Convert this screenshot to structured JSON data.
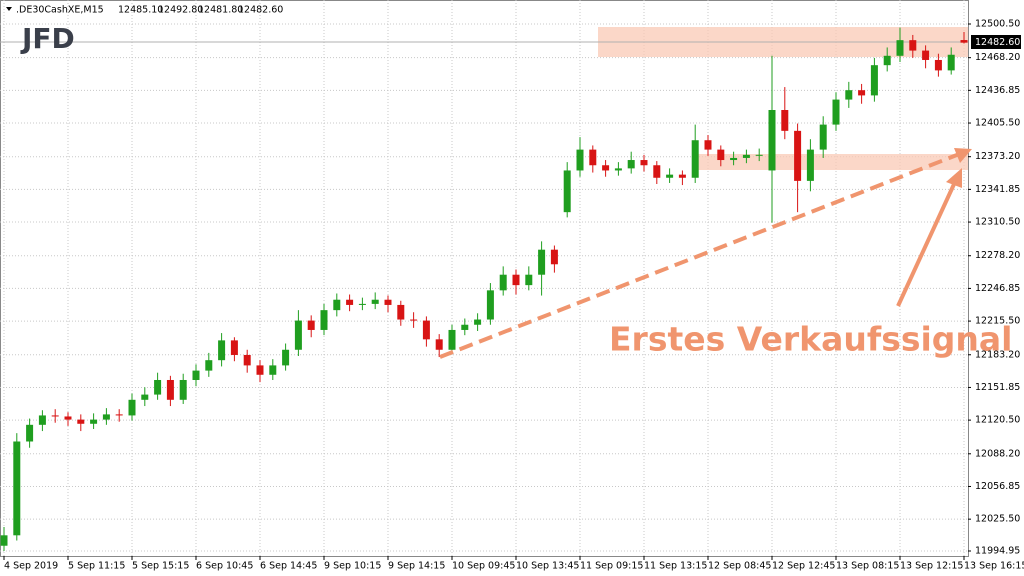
{
  "header": {
    "symbol": ".DE30CashXE,M15",
    "ohlc": [
      "12485.10",
      "12492.80",
      "12481.80",
      "12482.60"
    ]
  },
  "logo": "JFD",
  "current_price_label": "12482.60",
  "annotation": "Erstes Verkaufssignal",
  "chart_data": {
    "type": "candlestick",
    "up_color": "#1f9e1f",
    "down_color": "#d81414",
    "grid": true,
    "categories": [
      "4 Sep 2019",
      null,
      null,
      null,
      null,
      "5 Sep 11:15",
      null,
      null,
      null,
      null,
      "5 Sep 15:15",
      null,
      null,
      null,
      null,
      "6 Sep 10:45",
      null,
      null,
      null,
      null,
      "6 Sep 14:45",
      null,
      null,
      null,
      null,
      "9 Sep 10:15",
      null,
      null,
      null,
      null,
      "9 Sep 14:15",
      null,
      null,
      null,
      null,
      "10 Sep 09:45",
      null,
      null,
      null,
      null,
      "10 Sep 13:45",
      null,
      null,
      null,
      null,
      "11 Sep 09:15",
      null,
      null,
      null,
      null,
      "11 Sep 13:15",
      null,
      null,
      null,
      null,
      "12 Sep 08:45",
      null,
      null,
      null,
      null,
      "12 Sep 12:45",
      null,
      null,
      null,
      null,
      "13 Sep 08:15",
      null,
      null,
      null,
      null,
      "13 Sep 12:15",
      null,
      null,
      null,
      null,
      "13 Sep 16:15"
    ],
    "open": [
      12000,
      12010,
      12100,
      12116,
      12125,
      12124,
      12121,
      12117,
      12121,
      12126,
      12125,
      12140,
      12145,
      12159,
      12140,
      12159,
      12168,
      12178,
      12197,
      12183,
      12173,
      12164,
      12173,
      12188,
      12216,
      12207,
      12226,
      12236,
      12231,
      12232,
      12236,
      12231,
      12217,
      12216,
      12198,
      12188,
      12207,
      12212,
      12217,
      12245,
      12260,
      12250,
      12260,
      12284,
      12320,
      12360,
      12380,
      12365,
      12360,
      12362,
      12370,
      12365,
      12353,
      12356,
      12353,
      12389,
      12380,
      12370,
      12372,
      12375,
      12360,
      12418,
      12398,
      12350,
      12380,
      12404,
      12428,
      12437,
      12432,
      12461,
      12470,
      12485,
      12475,
      12466,
      12456,
      12485.1
    ],
    "high": [
      12018,
      12108,
      12122,
      12130,
      12131,
      12128,
      12126,
      12127,
      12132,
      12131,
      12146,
      12152,
      12166,
      12163,
      12165,
      12174,
      12185,
      12204,
      12200,
      12188,
      12178,
      12179,
      12194,
      12226,
      12221,
      12232,
      12242,
      12241,
      12238,
      12243,
      12240,
      12235,
      12224,
      12220,
      12203,
      12212,
      12218,
      12223,
      12252,
      12268,
      12265,
      12268,
      12292,
      12288,
      12368,
      12392,
      12384,
      12370,
      12368,
      12378,
      12375,
      12369,
      12362,
      12360,
      12404,
      12394,
      12384,
      12378,
      12380,
      12381,
      12470,
      12440,
      12405,
      12390,
      12412,
      12435,
      12445,
      12443,
      12468,
      12478,
      12497,
      12490,
      12480,
      12472,
      12478,
      12492.8
    ],
    "low": [
      11995,
      12005,
      12094,
      12110,
      12118,
      12115,
      12110,
      12112,
      12116,
      12119,
      12120,
      12134,
      12140,
      12134,
      12136,
      12153,
      12162,
      12172,
      12177,
      12166,
      12157,
      12159,
      12168,
      12182,
      12200,
      12202,
      12220,
      12225,
      12226,
      12227,
      12224,
      12211,
      12209,
      12191,
      12181,
      12184,
      12202,
      12206,
      12212,
      12240,
      12241,
      12245,
      12240,
      12262,
      12315,
      12354,
      12358,
      12354,
      12355,
      12357,
      12359,
      12347,
      12348,
      12346,
      12348,
      12374,
      12364,
      12365,
      12367,
      12369,
      12310,
      12390,
      12320,
      12340,
      12372,
      12398,
      12420,
      12424,
      12426,
      12455,
      12464,
      12468,
      12458,
      12450,
      12452,
      12481.8
    ],
    "close": [
      12010,
      12100,
      12116,
      12125,
      12124,
      12121,
      12117,
      12121,
      12126,
      12125,
      12140,
      12145,
      12159,
      12140,
      12159,
      12168,
      12178,
      12197,
      12183,
      12173,
      12164,
      12173,
      12188,
      12216,
      12207,
      12226,
      12236,
      12231,
      12232,
      12236,
      12231,
      12217,
      12216,
      12198,
      12188,
      12207,
      12212,
      12217,
      12245,
      12260,
      12250,
      12260,
      12284,
      12270,
      12360,
      12380,
      12365,
      12360,
      12362,
      12370,
      12365,
      12353,
      12356,
      12353,
      12389,
      12380,
      12370,
      12372,
      12375,
      12375,
      12418,
      12398,
      12350,
      12380,
      12404,
      12428,
      12437,
      12432,
      12461,
      12470,
      12485,
      12475,
      12466,
      12456,
      12471,
      12482.6
    ],
    "ylim": [
      11994.95,
      12500.5
    ],
    "yticks": [
      11994.95,
      {
        "value": 12025.5,
        "label": "12025.50"
      },
      12056.85,
      {
        "value": 12088.2,
        "label": "12088.20"
      },
      {
        "value": 12120.5,
        "label": "12120.50"
      },
      12151.85,
      {
        "value": 12183.2,
        "label": "12183.20"
      },
      {
        "value": 12215.5,
        "label": "12215.50"
      },
      12246.85,
      {
        "value": 12278.2,
        "label": "12278.20"
      },
      {
        "value": 12310.5,
        "label": "12310.50"
      },
      12341.85,
      {
        "value": 12373.2,
        "label": "12373.20"
      },
      {
        "value": 12405.5,
        "label": "12405.50"
      },
      12436.85,
      {
        "value": 12468.2,
        "label": "12468.20"
      },
      {
        "value": 12500.5,
        "label": "12500.50"
      }
    ]
  }
}
